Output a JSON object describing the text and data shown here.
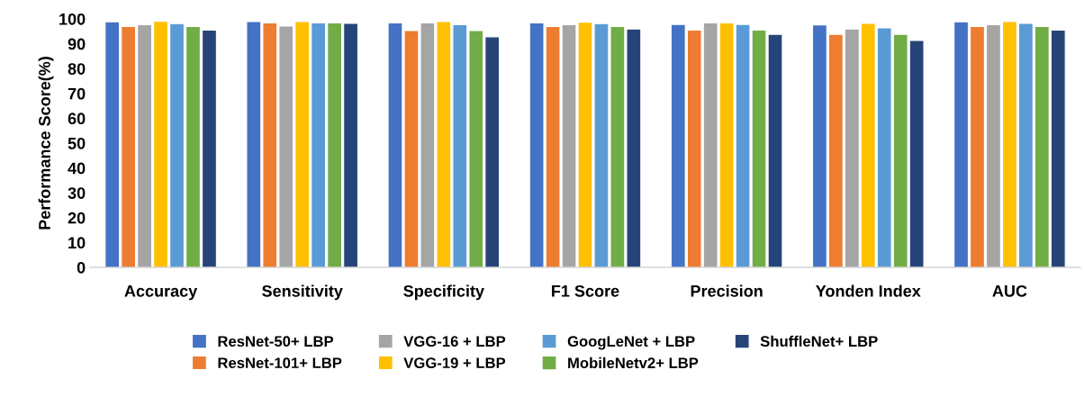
{
  "chart_data": {
    "type": "bar",
    "ylabel": "Performance Score(%)",
    "categories": [
      "Accuracy",
      "Sensitivity",
      "Specificity",
      "F1 Score",
      "Precision",
      "Yonden Index",
      "AUC"
    ],
    "ylim": [
      0,
      100
    ],
    "yticks": [
      0,
      10,
      20,
      30,
      40,
      50,
      60,
      70,
      80,
      90,
      100
    ],
    "grid": false,
    "legend": "bottom",
    "series": [
      {
        "name": "ResNet-50+ LBP",
        "color": "#4472c4",
        "values": [
          98.8,
          98.9,
          98.4,
          98.4,
          97.8,
          97.6,
          98.8
        ]
      },
      {
        "name": "ResNet-101+ LBP",
        "color": "#ed7d31",
        "values": [
          96.9,
          98.4,
          95.3,
          96.9,
          95.5,
          93.8,
          96.9
        ]
      },
      {
        "name": "VGG-16 + LBP",
        "color": "#a5a5a5",
        "values": [
          97.7,
          97.1,
          98.4,
          97.7,
          98.4,
          95.9,
          97.7
        ]
      },
      {
        "name": "VGG-19 + LBP",
        "color": "#ffc000",
        "values": [
          99.0,
          98.9,
          98.9,
          98.7,
          98.4,
          98.2,
          98.9
        ]
      },
      {
        "name": "GoogLeNet + LBP",
        "color": "#5b9bd5",
        "values": [
          98.1,
          98.4,
          97.7,
          98.1,
          97.8,
          96.4,
          98.2
        ]
      },
      {
        "name": "MobileNetv2+ LBP",
        "color": "#70ad47",
        "values": [
          96.9,
          98.4,
          95.3,
          96.9,
          95.5,
          93.8,
          96.9
        ]
      },
      {
        "name": "ShuffleNet+ LBP",
        "color": "#264478",
        "values": [
          95.5,
          98.2,
          92.8,
          95.9,
          93.8,
          91.3,
          95.5
        ]
      }
    ]
  }
}
